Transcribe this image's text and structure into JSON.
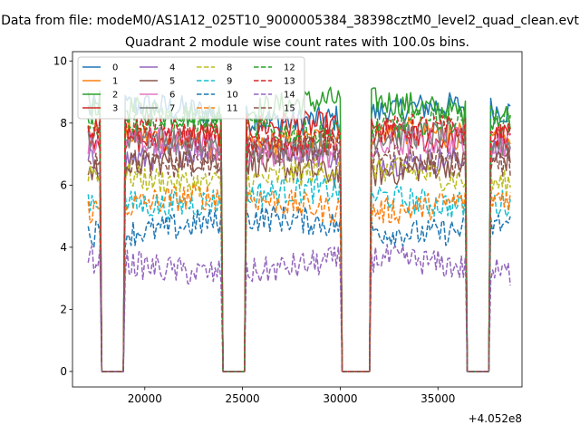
{
  "suptitle": "Data from file: modeM0/AS1A12_025T10_9000005384_38398cztM0_level2_quad_clean.evt",
  "chart_data": {
    "type": "line",
    "title": "Quadrant 2 module wise count rates with 100.0s bins.",
    "xlabel": "",
    "ylabel": "",
    "x_offset_label": "+4.052e8",
    "xlim": [
      16300,
      39300
    ],
    "ylim": [
      -0.5,
      10.3
    ],
    "x_ticks": [
      20000,
      25000,
      30000,
      35000
    ],
    "x_tick_labels": [
      "20000",
      "25000",
      "30000",
      "35000"
    ],
    "y_ticks": [
      0,
      2,
      4,
      6,
      8,
      10
    ],
    "y_tick_labels": [
      "0",
      "2",
      "4",
      "6",
      "8",
      "10"
    ],
    "grid": false,
    "legend_position": "upper-left",
    "legend_columns": 4,
    "time_range": [
      17100,
      38700
    ],
    "bin_width": 100,
    "on_intervals": [
      [
        17100,
        17700
      ],
      [
        19000,
        23900
      ],
      [
        25200,
        30000
      ],
      [
        31600,
        36400
      ],
      [
        37700,
        38700
      ]
    ],
    "off_level": 0,
    "series": [
      {
        "name": "0",
        "color": "#1f77b4",
        "dash": "solid",
        "level": 8.3
      },
      {
        "name": "1",
        "color": "#ff7f0e",
        "dash": "solid",
        "level": 7.5
      },
      {
        "name": "2",
        "color": "#2ca02c",
        "dash": "solid",
        "level": 8.5
      },
      {
        "name": "3",
        "color": "#d62728",
        "dash": "solid",
        "level": 7.7
      },
      {
        "name": "4",
        "color": "#9467bd",
        "dash": "solid",
        "level": 7.0
      },
      {
        "name": "5",
        "color": "#8c564b",
        "dash": "solid",
        "level": 6.6
      },
      {
        "name": "6",
        "color": "#e377c2",
        "dash": "solid",
        "level": 7.2
      },
      {
        "name": "7",
        "color": "#7f7f7f",
        "dash": "solid",
        "level": 7.4
      },
      {
        "name": "8",
        "color": "#bcbd22",
        "dash": "dashed",
        "level": 6.3
      },
      {
        "name": "9",
        "color": "#17becf",
        "dash": "dashed",
        "level": 5.6
      },
      {
        "name": "10",
        "color": "#1f77b4",
        "dash": "dashed",
        "level": 4.7
      },
      {
        "name": "11",
        "color": "#ff7f0e",
        "dash": "dashed",
        "level": 5.4
      },
      {
        "name": "12",
        "color": "#2ca02c",
        "dash": "dashed",
        "level": 7.9
      },
      {
        "name": "13",
        "color": "#d62728",
        "dash": "dashed",
        "level": 7.6
      },
      {
        "name": "14",
        "color": "#9467bd",
        "dash": "dashed",
        "level": 3.4
      },
      {
        "name": "15",
        "color": "#8c564b",
        "dash": "dashed",
        "level": 6.9
      }
    ]
  }
}
